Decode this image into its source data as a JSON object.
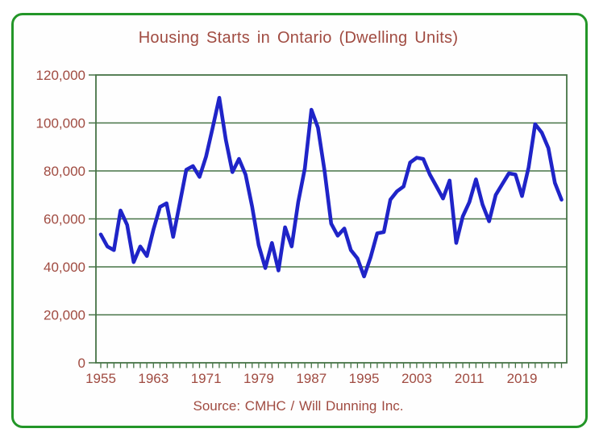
{
  "chart_data": {
    "type": "line",
    "title": "Housing Starts in Ontario (Dwelling Units)",
    "source_note": "Source: CMHC / Will Dunning Inc.",
    "xlabel": "",
    "ylabel": "",
    "legend": "none",
    "grid": "horizontal",
    "ylim": [
      0,
      120000
    ],
    "y_tick_step": 20000,
    "y_tick_labels": [
      "0",
      "20,000",
      "40,000",
      "60,000",
      "80,000",
      "100,000",
      "120,000"
    ],
    "x_tick_years": [
      1955,
      1963,
      1971,
      1979,
      1987,
      1995,
      2003,
      2011,
      2019
    ],
    "minor_x_ticks": "every year",
    "series": [
      {
        "name": "Housing starts (dwelling units)",
        "years": [
          1955,
          1956,
          1957,
          1958,
          1959,
          1960,
          1961,
          1962,
          1963,
          1964,
          1965,
          1966,
          1967,
          1968,
          1969,
          1970,
          1971,
          1972,
          1973,
          1974,
          1975,
          1976,
          1977,
          1978,
          1979,
          1980,
          1981,
          1982,
          1983,
          1984,
          1985,
          1986,
          1987,
          1988,
          1989,
          1990,
          1991,
          1992,
          1993,
          1994,
          1995,
          1996,
          1997,
          1998,
          1999,
          2000,
          2001,
          2002,
          2003,
          2004,
          2005,
          2006,
          2007,
          2008,
          2009,
          2010,
          2011,
          2012,
          2013,
          2014,
          2015,
          2016,
          2017,
          2018,
          2019,
          2020,
          2021,
          2022,
          2023,
          2024,
          2025
        ],
        "values": [
          53500,
          48500,
          47000,
          63500,
          57500,
          42000,
          48500,
          44500,
          55500,
          65000,
          66500,
          52500,
          66500,
          80500,
          82000,
          77500,
          86000,
          98000,
          110500,
          93000,
          79500,
          85000,
          78500,
          65000,
          49000,
          39500,
          50000,
          38500,
          56500,
          48500,
          67000,
          81000,
          105500,
          98000,
          80000,
          58000,
          53000,
          56000,
          47000,
          43500,
          36000,
          44000,
          54000,
          54500,
          68000,
          71500,
          73500,
          83500,
          85500,
          85000,
          78500,
          73500,
          68500,
          76000,
          50000,
          61000,
          67000,
          76500,
          66000,
          59000,
          70000,
          74500,
          79000,
          78500,
          69500,
          81500,
          99500,
          96000,
          89500,
          75000,
          68000
        ]
      }
    ],
    "colors": {
      "line": "#1f24c8",
      "grid": "#467346",
      "frame": "#239628",
      "text": "#a04b41",
      "background": "#ffffff"
    }
  }
}
